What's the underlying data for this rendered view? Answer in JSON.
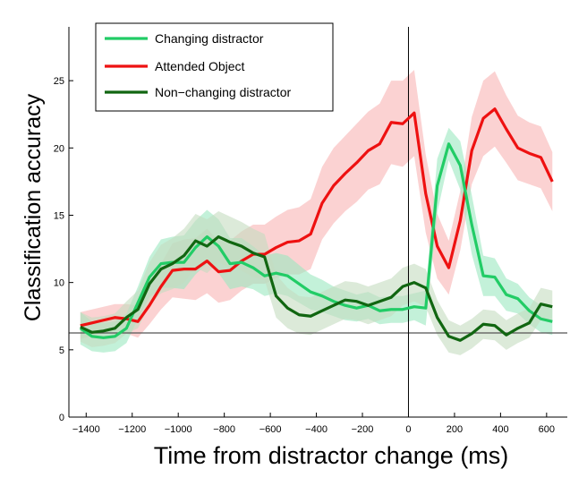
{
  "chart_data": {
    "type": "line",
    "title": "",
    "xlabel": "Time from distractor change (ms)",
    "ylabel": "Classification accuracy",
    "xlim": [
      -1475,
      690
    ],
    "ylim": [
      0,
      29
    ],
    "xticks": [
      -1400,
      -1200,
      -1000,
      -800,
      -600,
      -400,
      -200,
      0,
      200,
      400,
      600
    ],
    "yticks": [
      0,
      5,
      10,
      15,
      20,
      25
    ],
    "grid": false,
    "legend_position": "top-left",
    "chance_level": 6.25,
    "reference_time": 0,
    "x": [
      -1425,
      -1375,
      -1325,
      -1275,
      -1225,
      -1175,
      -1125,
      -1075,
      -1025,
      -975,
      -925,
      -875,
      -825,
      -775,
      -725,
      -675,
      -625,
      -575,
      -525,
      -475,
      -425,
      -375,
      -325,
      -275,
      -225,
      -175,
      -125,
      -75,
      -25,
      25,
      75,
      125,
      175,
      225,
      275,
      325,
      375,
      425,
      475,
      525,
      575,
      625
    ],
    "series": [
      {
        "name": "Changing distractor",
        "color": "#22cc66",
        "band_color": "#9be8c0",
        "values": [
          6.6,
          6.0,
          5.9,
          6.0,
          6.6,
          8.5,
          10.4,
          11.4,
          11.5,
          11.5,
          12.6,
          13.4,
          12.7,
          11.4,
          11.5,
          11.1,
          10.5,
          10.7,
          10.5,
          9.9,
          9.3,
          9.0,
          8.6,
          8.3,
          8.1,
          8.3,
          7.9,
          8.0,
          8.0,
          8.2,
          8.1,
          17.2,
          20.3,
          18.7,
          14.3,
          10.5,
          10.4,
          9.1,
          8.8,
          7.9,
          7.3,
          7.1
        ],
        "band": [
          1.2,
          1.1,
          1.1,
          1.1,
          1.1,
          1.2,
          1.5,
          1.8,
          1.9,
          2.0,
          2.0,
          2.0,
          2.0,
          1.9,
          1.8,
          1.6,
          1.5,
          1.5,
          1.5,
          1.4,
          1.3,
          1.2,
          1.1,
          1.1,
          1.0,
          1.0,
          1.0,
          1.0,
          1.0,
          1.0,
          1.3,
          2.0,
          1.2,
          1.8,
          2.2,
          1.5,
          1.4,
          1.2,
          1.1,
          1.0,
          1.0,
          1.0
        ]
      },
      {
        "name": "Attended Object",
        "color": "#ee1111",
        "band_color": "#f8b4b4",
        "values": [
          6.8,
          7.0,
          7.2,
          7.4,
          7.3,
          7.1,
          8.3,
          9.7,
          10.9,
          11.0,
          11.0,
          11.6,
          10.8,
          10.9,
          11.6,
          12.1,
          12.1,
          12.6,
          13.0,
          13.1,
          13.6,
          15.9,
          17.2,
          18.1,
          18.9,
          19.8,
          20.3,
          21.9,
          21.8,
          22.6,
          16.6,
          12.7,
          11.1,
          14.6,
          19.8,
          22.2,
          22.9,
          21.4,
          20.0,
          19.6,
          19.3,
          17.5
        ],
        "band": [
          1.0,
          1.0,
          1.0,
          1.0,
          1.1,
          1.2,
          1.4,
          1.7,
          2.0,
          2.2,
          2.3,
          2.4,
          2.3,
          2.2,
          2.2,
          2.2,
          2.2,
          2.3,
          2.4,
          2.5,
          2.6,
          2.7,
          2.8,
          2.8,
          2.9,
          2.9,
          3.0,
          3.1,
          3.2,
          3.2,
          2.9,
          2.4,
          2.0,
          2.2,
          2.5,
          2.8,
          2.8,
          2.5,
          2.4,
          2.3,
          2.3,
          2.2
        ]
      },
      {
        "name": "Non−changing distractor",
        "color": "#116611",
        "band_color": "#c4dcc0",
        "values": [
          6.7,
          6.3,
          6.4,
          6.6,
          7.4,
          8.0,
          9.9,
          11.0,
          11.4,
          12.0,
          13.1,
          12.7,
          13.4,
          13.0,
          12.7,
          12.2,
          11.9,
          9.0,
          8.1,
          7.6,
          7.5,
          7.9,
          8.3,
          8.7,
          8.6,
          8.3,
          8.6,
          8.9,
          9.7,
          10.0,
          9.6,
          7.4,
          6.0,
          5.7,
          6.2,
          6.9,
          6.8,
          6.1,
          6.6,
          7.0,
          8.4,
          8.2
        ],
        "band": [
          1.1,
          1.1,
          1.1,
          1.1,
          1.2,
          1.4,
          1.6,
          1.8,
          1.9,
          2.0,
          2.0,
          2.0,
          1.9,
          1.9,
          1.8,
          1.8,
          1.7,
          1.6,
          1.5,
          1.4,
          1.4,
          1.4,
          1.4,
          1.4,
          1.4,
          1.4,
          1.4,
          1.4,
          1.4,
          1.4,
          1.4,
          1.3,
          1.2,
          1.1,
          1.1,
          1.1,
          1.1,
          1.1,
          1.1,
          1.1,
          1.2,
          1.2
        ]
      }
    ]
  }
}
